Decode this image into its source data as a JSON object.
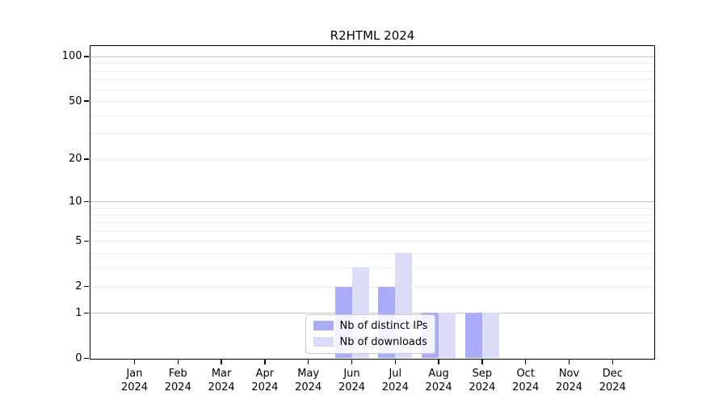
{
  "chart_data": {
    "type": "bar",
    "title": "R2HTML 2024",
    "categories": [
      "Jan",
      "Feb",
      "Mar",
      "Apr",
      "May",
      "Jun",
      "Jul",
      "Aug",
      "Sep",
      "Oct",
      "Nov",
      "Dec"
    ],
    "year_label": "2024",
    "series": [
      {
        "name": "Nb of distinct IPs",
        "color": "#a9abf7",
        "values": [
          0,
          0,
          0,
          0,
          0,
          2,
          2,
          1,
          1,
          0,
          0,
          0
        ]
      },
      {
        "name": "Nb of downloads",
        "color": "#dbdcf8",
        "values": [
          0,
          0,
          0,
          0,
          0,
          3,
          4,
          1,
          1,
          0,
          0,
          0
        ]
      }
    ],
    "scale": "log1p",
    "ylim": [
      0,
      118
    ],
    "yticks": [
      0,
      1,
      2,
      5,
      10,
      20,
      50,
      100
    ],
    "grid_major": [
      1,
      10,
      100
    ],
    "grid_minor": [
      2,
      3,
      4,
      5,
      6,
      7,
      8,
      9,
      20,
      30,
      40,
      50,
      60,
      70,
      80,
      90
    ],
    "grid_on": true,
    "legend_position": "lower center-left, inside plot",
    "xlabel": "",
    "ylabel": "",
    "colors": {
      "bar_ips": "#a9abf7",
      "bar_downloads": "#dbdcf8",
      "major_grid": "#c6c6c6",
      "minor_grid": "#efefef",
      "spine": "#000000",
      "legend_border": "#cccccc",
      "legend_bg": "rgba(255,255,255,0.85)"
    }
  }
}
